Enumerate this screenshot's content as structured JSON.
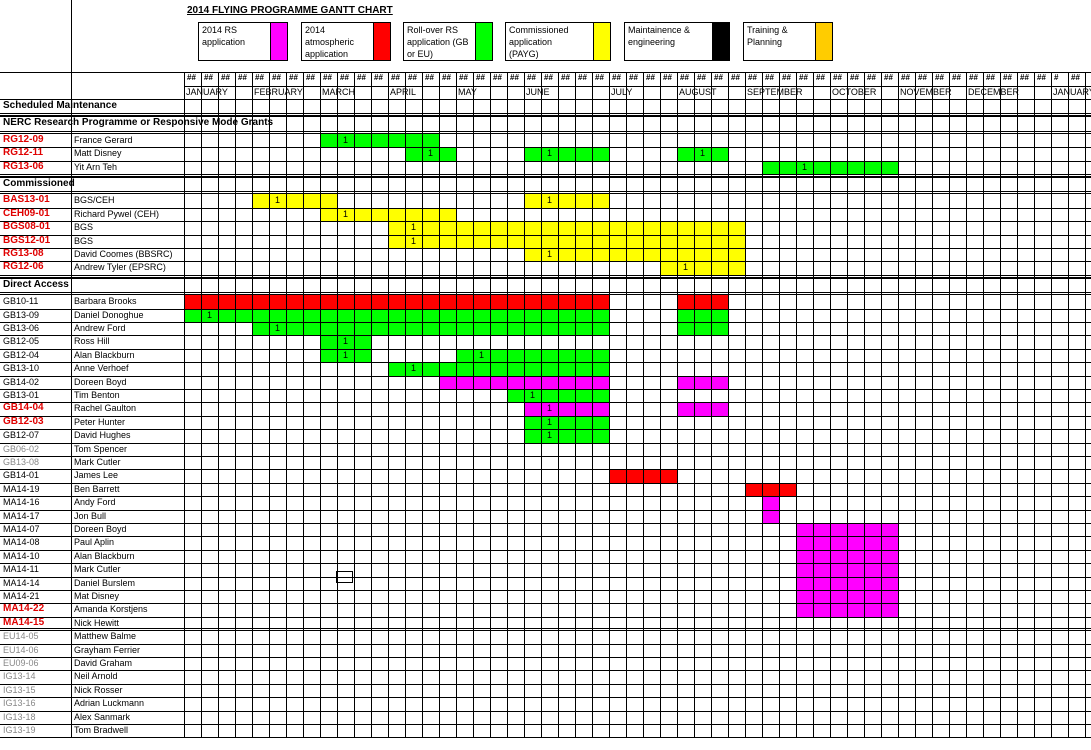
{
  "title": "2014 FLYING PROGRAMME GANTT CHART",
  "colors": {
    "rs": "#ff00ff",
    "atmos": "#ff0000",
    "rollover": "#00ff00",
    "commissioned": "#ffff00",
    "maint": "#000000",
    "training": "#ffcc00"
  },
  "legend": [
    {
      "label": "2014 RS application",
      "color": "#ff00ff"
    },
    {
      "label": "2014 atmospheric application",
      "color": "#ff0000"
    },
    {
      "label": "Roll-over RS application (GB or EU)",
      "color": "#00ff00"
    },
    {
      "label": "Commissioned application (PAYG)",
      "color": "#ffff00"
    },
    {
      "label": "Maintainence & engineering",
      "color": "#000000"
    },
    {
      "label": "Training & Planning",
      "color": "#ffcc00"
    }
  ],
  "week_header": "##",
  "week_header_alt": "#",
  "months": [
    "JANUARY",
    "FEBRUARY",
    "MARCH",
    "APRIL",
    "MAY",
    "JUNE",
    "JULY",
    "AUGUST",
    "SEPTEMBER",
    "OCTOBER",
    "NOVEMBER",
    "DECEMBER",
    "JANUARY"
  ],
  "sections": [
    {
      "label": "Scheduled Maintenance",
      "rows": []
    },
    {
      "label": "NERC Research Programme or Responsive Mode Grants",
      "rows": [
        {
          "code": "RG12-09",
          "name": "France Gerard",
          "style": "red",
          "bars": [
            {
              "s": 8,
              "e": 15,
              "c": "rollover",
              "one": 9
            }
          ]
        },
        {
          "code": "RG12-11",
          "name": "Matt Disney",
          "style": "red",
          "bars": [
            {
              "s": 13,
              "e": 16,
              "c": "rollover",
              "one": 14
            },
            {
              "s": 20,
              "e": 25,
              "c": "rollover",
              "one": 21
            },
            {
              "s": 29,
              "e": 32,
              "c": "rollover",
              "one": 30
            }
          ]
        },
        {
          "code": "RG13-06",
          "name": "Yit Arn Teh",
          "style": "red",
          "bars": [
            {
              "s": 34,
              "e": 42,
              "c": "rollover",
              "one": 36
            }
          ]
        }
      ]
    },
    {
      "label": "Commissioned",
      "rows": [
        {
          "code": "BAS13-01",
          "name": "BGS/CEH",
          "style": "red",
          "bars": [
            {
              "s": 4,
              "e": 9,
              "c": "commissioned",
              "one": 5
            },
            {
              "s": 20,
              "e": 25,
              "c": "commissioned",
              "one": 21
            }
          ]
        },
        {
          "code": "CEH09-01",
          "name": "Richard Pywel (CEH)",
          "style": "red",
          "bars": [
            {
              "s": 8,
              "e": 16,
              "c": "commissioned",
              "one": 9
            }
          ]
        },
        {
          "code": "BGS08-01",
          "name": "BGS",
          "style": "red",
          "bars": [
            {
              "s": 12,
              "e": 33,
              "c": "commissioned",
              "one": 13
            }
          ]
        },
        {
          "code": "BGS12-01",
          "name": "BGS",
          "style": "red",
          "bars": [
            {
              "s": 12,
              "e": 33,
              "c": "commissioned",
              "one": 13
            }
          ]
        },
        {
          "code": "RG13-08",
          "name": "David Coomes (BBSRC)",
          "style": "red",
          "bars": [
            {
              "s": 20,
              "e": 33,
              "c": "commissioned",
              "one": 21
            }
          ]
        },
        {
          "code": "RG12-06",
          "name": "Andrew Tyler (EPSRC)",
          "style": "red",
          "bars": [
            {
              "s": 28,
              "e": 33,
              "c": "commissioned",
              "one": 29
            }
          ]
        }
      ]
    },
    {
      "label": "Direct Access",
      "rows": [
        {
          "code": "GB10-11",
          "name": "Barbara Brooks",
          "style": "black",
          "bars": [
            {
              "s": 0,
              "e": 25,
              "c": "atmos"
            },
            {
              "s": 29,
              "e": 32,
              "c": "atmos"
            }
          ]
        },
        {
          "code": "GB13-09",
          "name": "Daniel Donoghue",
          "style": "black",
          "bars": [
            {
              "s": 0,
              "e": 25,
              "c": "rollover",
              "one": 1
            },
            {
              "s": 29,
              "e": 32,
              "c": "rollover"
            }
          ]
        },
        {
          "code": "GB13-06",
          "name": "Andrew Ford",
          "style": "black",
          "bars": [
            {
              "s": 4,
              "e": 25,
              "c": "rollover",
              "one": 5
            },
            {
              "s": 29,
              "e": 32,
              "c": "rollover"
            }
          ]
        },
        {
          "code": "GB12-05",
          "name": "Ross Hill",
          "style": "black",
          "bars": [
            {
              "s": 8,
              "e": 11,
              "c": "rollover",
              "one": 9
            }
          ]
        },
        {
          "code": "GB12-04",
          "name": "Alan Blackburn",
          "style": "black",
          "bars": [
            {
              "s": 8,
              "e": 11,
              "c": "rollover",
              "one": 9
            },
            {
              "s": 16,
              "e": 25,
              "c": "rollover",
              "one": 17
            }
          ]
        },
        {
          "code": "GB13-10",
          "name": "Anne Verhoef",
          "style": "black",
          "bars": [
            {
              "s": 12,
              "e": 25,
              "c": "rollover",
              "one": 13
            }
          ]
        },
        {
          "code": "GB14-02",
          "name": "Doreen Boyd",
          "style": "black",
          "bars": [
            {
              "s": 15,
              "e": 25,
              "c": "rs"
            },
            {
              "s": 29,
              "e": 32,
              "c": "rs"
            }
          ]
        },
        {
          "code": "GB13-01",
          "name": "Tim Benton",
          "style": "black",
          "bars": [
            {
              "s": 19,
              "e": 25,
              "c": "rollover",
              "one": 20
            }
          ]
        },
        {
          "code": "GB14-04",
          "name": "Rachel Gaulton",
          "style": "red",
          "bars": [
            {
              "s": 20,
              "e": 25,
              "c": "rs",
              "one": 21
            },
            {
              "s": 29,
              "e": 32,
              "c": "rs"
            }
          ]
        },
        {
          "code": "GB12-03",
          "name": "Peter Hunter",
          "style": "red",
          "bars": [
            {
              "s": 20,
              "e": 25,
              "c": "rollover",
              "one": 21
            }
          ]
        },
        {
          "code": "GB12-07",
          "name": "David Hughes",
          "style": "black",
          "bars": [
            {
              "s": 20,
              "e": 25,
              "c": "rollover",
              "one": 21
            }
          ]
        },
        {
          "code": "GB06-02",
          "name": "Tom Spencer",
          "style": "grey",
          "bars": []
        },
        {
          "code": "GB13-08",
          "name": "Mark Cutler",
          "style": "grey",
          "bars": []
        },
        {
          "code": "GB14-01",
          "name": "James Lee",
          "style": "black",
          "bars": [
            {
              "s": 25,
              "e": 29,
              "c": "atmos"
            }
          ]
        },
        {
          "code": "MA14-19",
          "name": "Ben Barrett",
          "style": "black",
          "bars": [
            {
              "s": 33,
              "e": 36,
              "c": "atmos"
            }
          ]
        },
        {
          "code": "MA14-16",
          "name": "Andy Ford",
          "style": "black",
          "bars": [
            {
              "s": 34,
              "e": 35,
              "c": "rs"
            }
          ]
        },
        {
          "code": "MA14-17",
          "name": "Jon Bull",
          "style": "black",
          "bars": [
            {
              "s": 34,
              "e": 35,
              "c": "rs"
            }
          ]
        },
        {
          "code": "MA14-07",
          "name": "Doreen Boyd",
          "style": "black",
          "bars": [
            {
              "s": 36,
              "e": 42,
              "c": "rs"
            }
          ]
        },
        {
          "code": "MA14-08",
          "name": "Paul Aplin",
          "style": "black",
          "bars": [
            {
              "s": 36,
              "e": 42,
              "c": "rs"
            }
          ]
        },
        {
          "code": "MA14-10",
          "name": "Alan Blackburn",
          "style": "black",
          "bars": [
            {
              "s": 36,
              "e": 42,
              "c": "rs"
            }
          ]
        },
        {
          "code": "MA14-11",
          "name": "Mark Cutler",
          "style": "black",
          "bars": [
            {
              "s": 36,
              "e": 42,
              "c": "rs"
            }
          ]
        },
        {
          "code": "MA14-14",
          "name": "Daniel Burslem",
          "style": "black",
          "bars": [
            {
              "s": 36,
              "e": 42,
              "c": "rs"
            }
          ]
        },
        {
          "code": "MA14-21",
          "name": "Mat Disney",
          "style": "black",
          "bars": [
            {
              "s": 36,
              "e": 42,
              "c": "rs"
            }
          ]
        },
        {
          "code": "MA14-22",
          "name": "Amanda Korstjens",
          "style": "red",
          "bars": [
            {
              "s": 36,
              "e": 42,
              "c": "rs"
            }
          ]
        },
        {
          "code": "MA14-15",
          "name": "Nick Hewitt",
          "style": "red",
          "bars": []
        },
        {
          "code": "EU14-05",
          "name": "Matthew Balme",
          "style": "grey",
          "bars": []
        },
        {
          "code": "EU14-06",
          "name": "Grayham Ferrier",
          "style": "grey",
          "bars": []
        },
        {
          "code": "EU09-06",
          "name": "David Graham",
          "style": "grey",
          "bars": []
        },
        {
          "code": "IG13-14",
          "name": "Neil Arnold",
          "style": "grey",
          "bars": []
        },
        {
          "code": "IG13-15",
          "name": "Nick Rosser",
          "style": "grey",
          "bars": []
        },
        {
          "code": "IG13-16",
          "name": "Adrian Luckmann",
          "style": "grey",
          "bars": []
        },
        {
          "code": "IG13-18",
          "name": "Alex Sanmark",
          "style": "grey",
          "bars": []
        },
        {
          "code": "IG13-19",
          "name": "Tom Bradwell",
          "style": "grey",
          "bars": []
        }
      ]
    }
  ]
}
